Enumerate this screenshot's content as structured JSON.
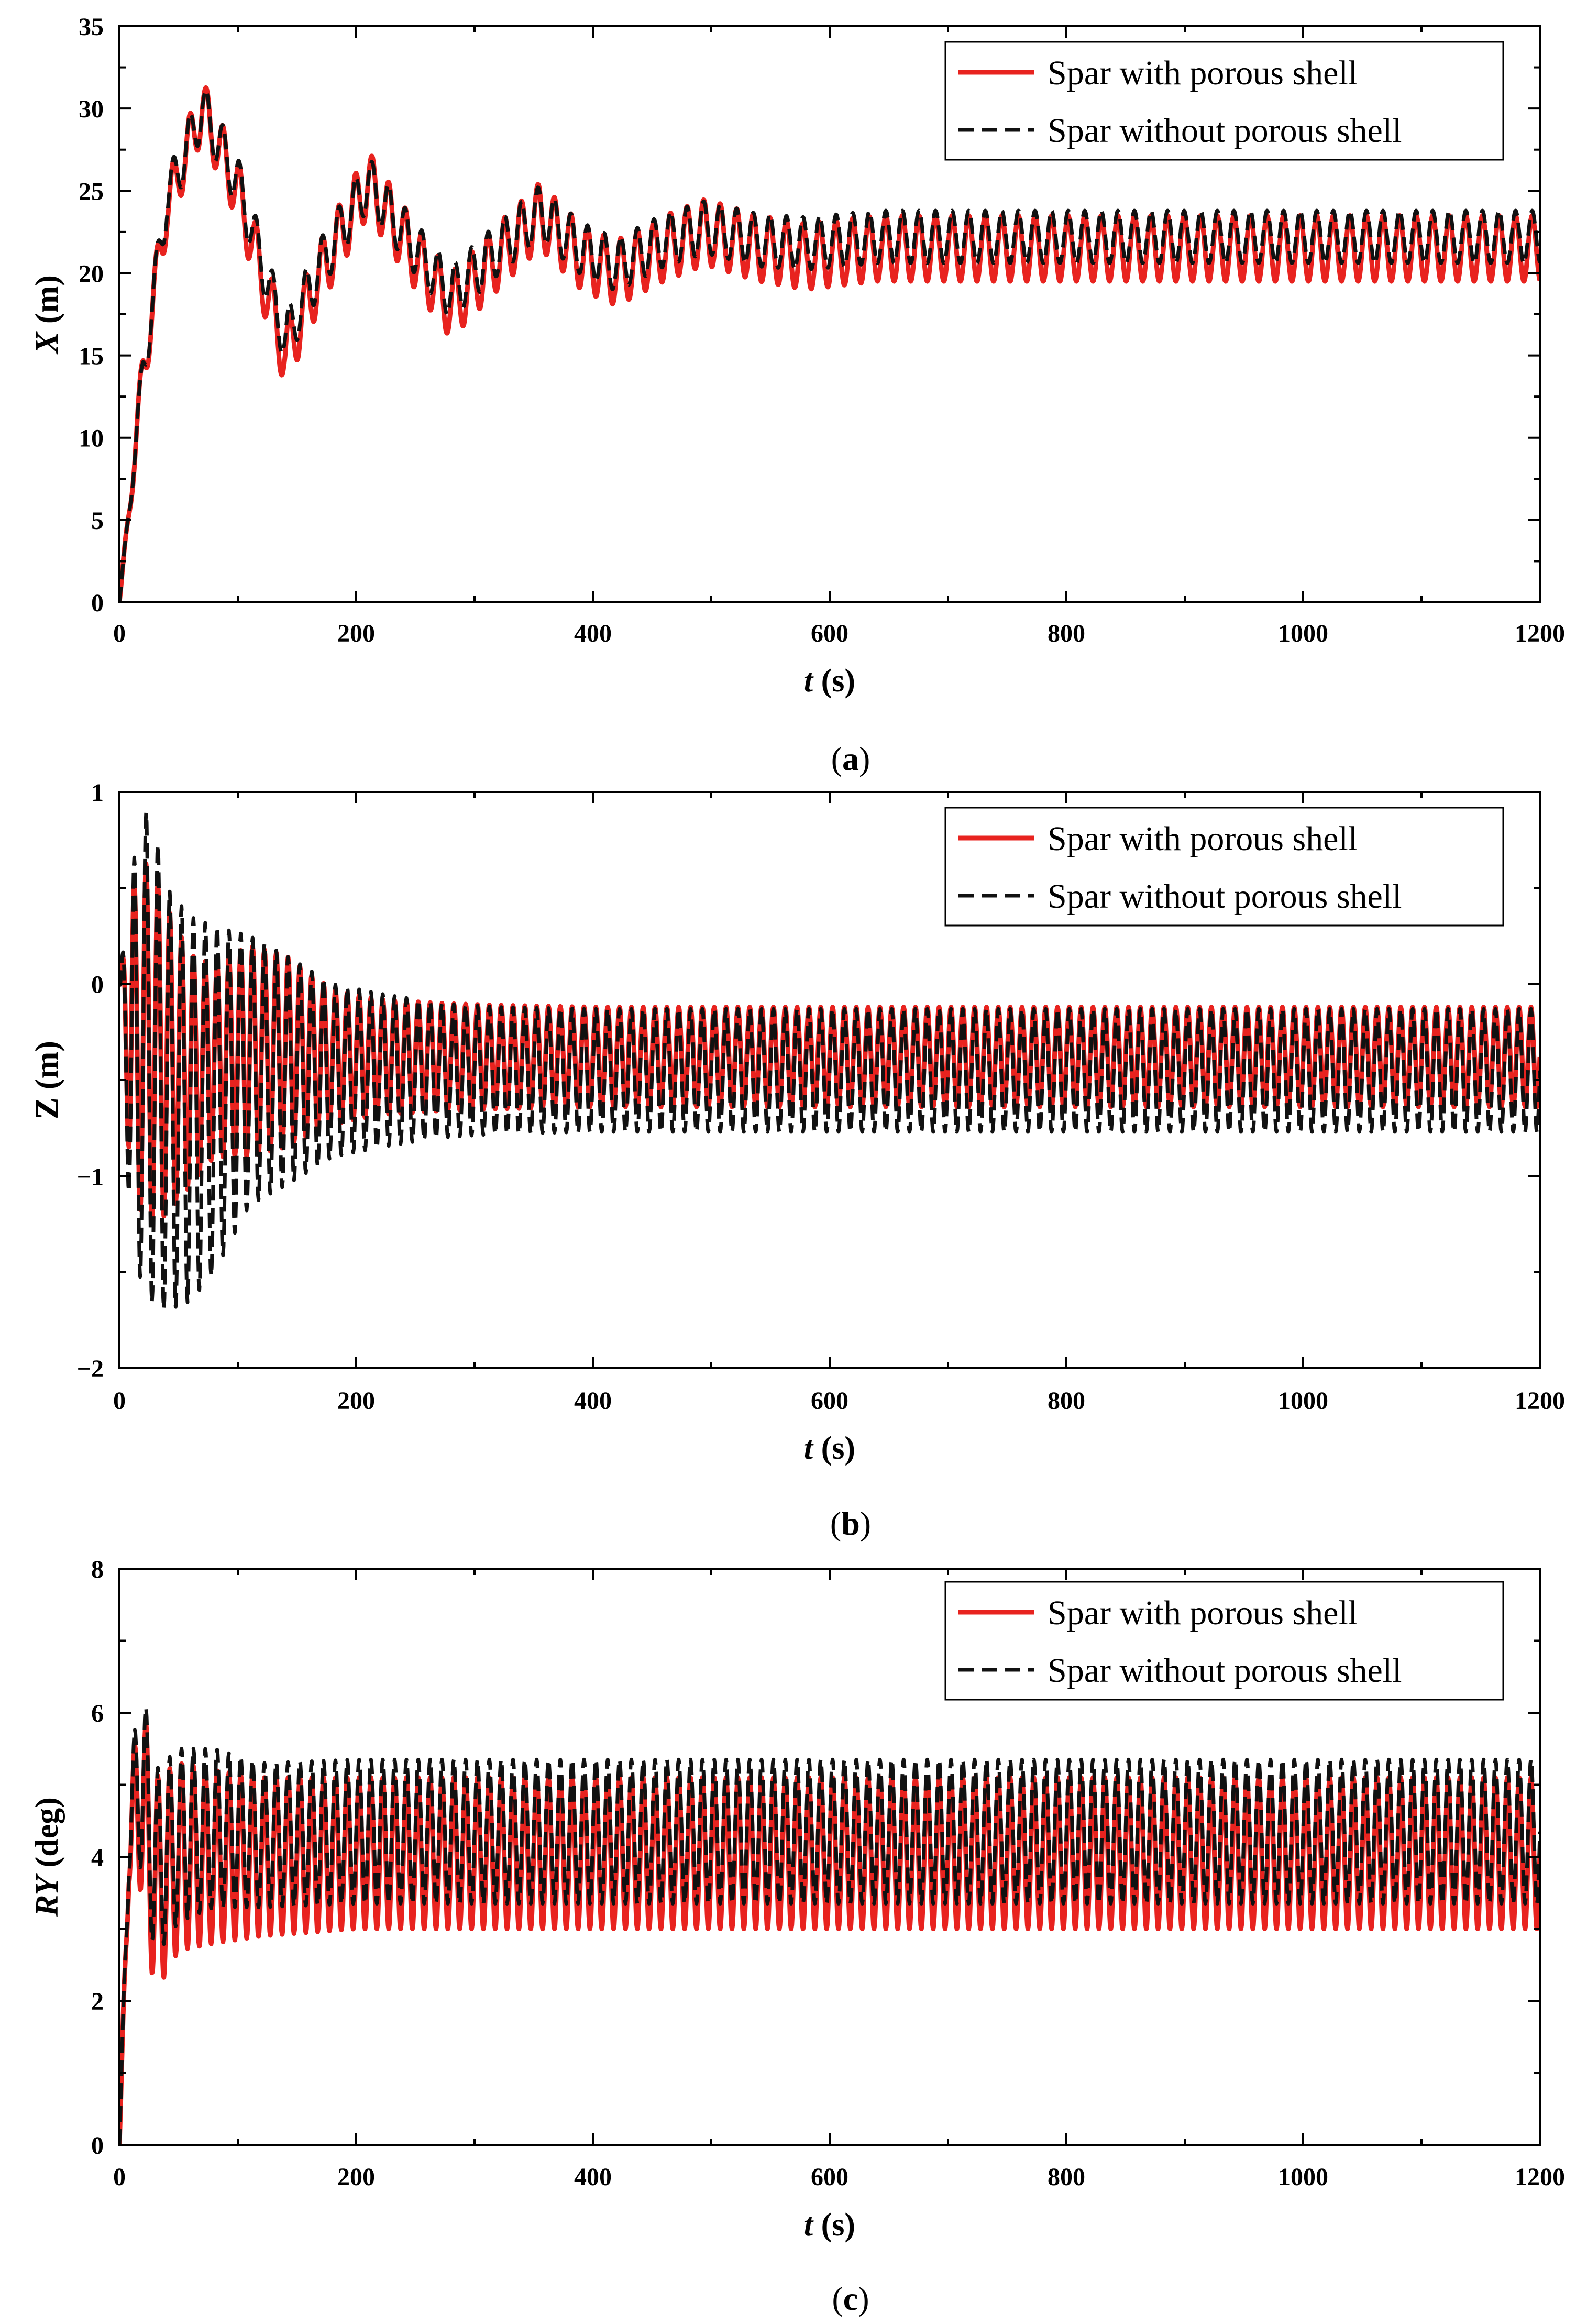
{
  "chart_data": [
    {
      "panel": "a",
      "type": "line",
      "caption": "a",
      "xlabel": "t",
      "xlabel_unit": "(s)",
      "ylabel": "X",
      "ylabel_unit": "(m)",
      "xlim": [
        0,
        1200
      ],
      "ylim": [
        0,
        35
      ],
      "xticks": [
        0,
        200,
        400,
        600,
        800,
        1000,
        1200
      ],
      "yticks": [
        0,
        5,
        10,
        15,
        20,
        25,
        30,
        35
      ],
      "legend_position": "top-right",
      "series": [
        {
          "name": "Spar with porous shell",
          "color": "#e8231f",
          "style": "solid",
          "model": {
            "kind": "decaying_drift",
            "x": [
              0,
              20,
              40,
              70,
              100,
              140,
              170,
              210,
              250,
              280,
              320,
              355,
              390,
              420,
              460,
              495,
              540,
              580,
              640,
              700,
              800,
              1200
            ],
            "mean": [
              0,
              14,
              24,
              30,
              25,
              15,
              20,
              25.5,
              21,
              18,
              21,
              23.5,
              21,
              20,
              21.5,
              22.5,
              21.5,
              21,
              21.5,
              21.5,
              21.5,
              21.5
            ],
            "wave_period": 14,
            "wave_amplitude": [
              0,
              1.6,
              1.7,
              1.8,
              1.9,
              2.0,
              2.0,
              2.0,
              2.0,
              2.0,
              2.0,
              2.0,
              2.0,
              2.0,
              2.0,
              2.0,
              2.0,
              2.0,
              2.0,
              2.0,
              2.0,
              2.0
            ]
          }
        },
        {
          "name": "Spar without porous shell",
          "color": "#111111",
          "style": "dashed",
          "model": {
            "kind": "decaying_drift",
            "x": [
              0,
              20,
              40,
              70,
              100,
              140,
              170,
              210,
              250,
              280,
              320,
              355,
              390,
              420,
              460,
              495,
              540,
              580,
              640,
              700,
              800,
              1200
            ],
            "mean": [
              0,
              14,
              24.5,
              30,
              25.5,
              16,
              20.5,
              25.5,
              21.5,
              18.8,
              21.5,
              23.7,
              21.5,
              20.5,
              22,
              22.8,
              22,
              21.8,
              22.2,
              22.2,
              22.2,
              22.2
            ],
            "wave_period": 14,
            "wave_amplitude": [
              0,
              1.4,
              1.5,
              1.6,
              1.6,
              1.6,
              1.6,
              1.6,
              1.6,
              1.6,
              1.6,
              1.6,
              1.6,
              1.6,
              1.6,
              1.6,
              1.6,
              1.6,
              1.6,
              1.6,
              1.6,
              1.6
            ]
          }
        }
      ]
    },
    {
      "panel": "b",
      "type": "line",
      "caption": "b",
      "xlabel": "t",
      "xlabel_unit": "(s)",
      "ylabel": "Z",
      "ylabel_unit": "(m)",
      "ylabel_italic": false,
      "xlim": [
        0,
        1200
      ],
      "ylim": [
        -2,
        1
      ],
      "xticks": [
        0,
        200,
        400,
        600,
        800,
        1000,
        1200
      ],
      "yticks": [
        -2,
        -1,
        0,
        1
      ],
      "ytick_labels": [
        "−2",
        "−1",
        "0",
        "1"
      ],
      "legend_position": "top-right",
      "series": [
        {
          "name": "Spar with porous shell",
          "color": "#e8231f",
          "style": "solid",
          "model": {
            "kind": "decaying_drift",
            "x": [
              0,
              10,
              25,
              40,
              60,
              80,
              110,
              140,
              180,
              220,
              270,
              320,
              400,
              1200
            ],
            "mean": [
              0,
              -0.3,
              -0.3,
              -0.4,
              -0.45,
              -0.4,
              -0.35,
              -0.35,
              -0.38,
              -0.38,
              -0.38,
              -0.38,
              -0.38,
              -0.38
            ],
            "wave_period": 10,
            "wave_amplitude": [
              0,
              0.8,
              0.95,
              0.8,
              0.6,
              0.5,
              0.55,
              0.5,
              0.35,
              0.3,
              0.28,
              0.27,
              0.26,
              0.26
            ]
          }
        },
        {
          "name": "Spar without porous shell",
          "color": "#111111",
          "style": "dashed",
          "model": {
            "kind": "decaying_drift",
            "x": [
              0,
              10,
              25,
              40,
              60,
              80,
              110,
              140,
              180,
              220,
              270,
              320,
              400,
              1200
            ],
            "mean": [
              0,
              -0.4,
              -0.35,
              -0.6,
              -0.65,
              -0.6,
              -0.45,
              -0.45,
              -0.45,
              -0.45,
              -0.45,
              -0.45,
              -0.45,
              -0.45
            ],
            "wave_period": 10,
            "wave_amplitude": [
              0,
              1.0,
              1.3,
              1.1,
              1.0,
              0.9,
              0.7,
              0.6,
              0.45,
              0.4,
              0.35,
              0.33,
              0.32,
              0.32
            ]
          }
        }
      ]
    },
    {
      "panel": "c",
      "type": "line",
      "caption": "c",
      "xlabel": "t",
      "xlabel_unit": "(s)",
      "ylabel": "RY",
      "ylabel_unit": "(deg)",
      "xlim": [
        0,
        1200
      ],
      "ylim": [
        0,
        8
      ],
      "xticks": [
        0,
        200,
        400,
        600,
        800,
        1000,
        1200
      ],
      "yticks": [
        0,
        2,
        4,
        6,
        8
      ],
      "legend_position": "top-right",
      "series": [
        {
          "name": "Spar with porous shell",
          "color": "#e8231f",
          "style": "solid",
          "model": {
            "kind": "decaying_drift",
            "x": [
              0,
              8,
              17,
              30,
              50,
              80,
              120,
              200,
              400,
              1200
            ],
            "mean": [
              0,
              4.1,
              5.0,
              3.6,
              4.0,
              4.0,
              4.0,
              4.05,
              4.05,
              4.05
            ],
            "wave_period": 10,
            "wave_amplitude": [
              0,
              0.5,
              1.4,
              1.5,
              1.3,
              1.2,
              1.1,
              1.05,
              1.05,
              1.05
            ]
          }
        },
        {
          "name": "Spar without porous shell",
          "color": "#111111",
          "style": "dashed",
          "model": {
            "kind": "decaying_drift",
            "x": [
              0,
              8,
              17,
              30,
              50,
              80,
              120,
              200,
              400,
              1200
            ],
            "mean": [
              0,
              4.2,
              5.3,
              3.9,
              4.3,
              4.4,
              4.3,
              4.35,
              4.35,
              4.35
            ],
            "wave_period": 10,
            "wave_amplitude": [
              0,
              0.5,
              1.4,
              1.3,
              1.2,
              1.1,
              1.0,
              1.0,
              1.0,
              1.0
            ]
          }
        }
      ]
    }
  ],
  "legend_labels": [
    "Spar with porous shell",
    "Spar without porous shell"
  ]
}
